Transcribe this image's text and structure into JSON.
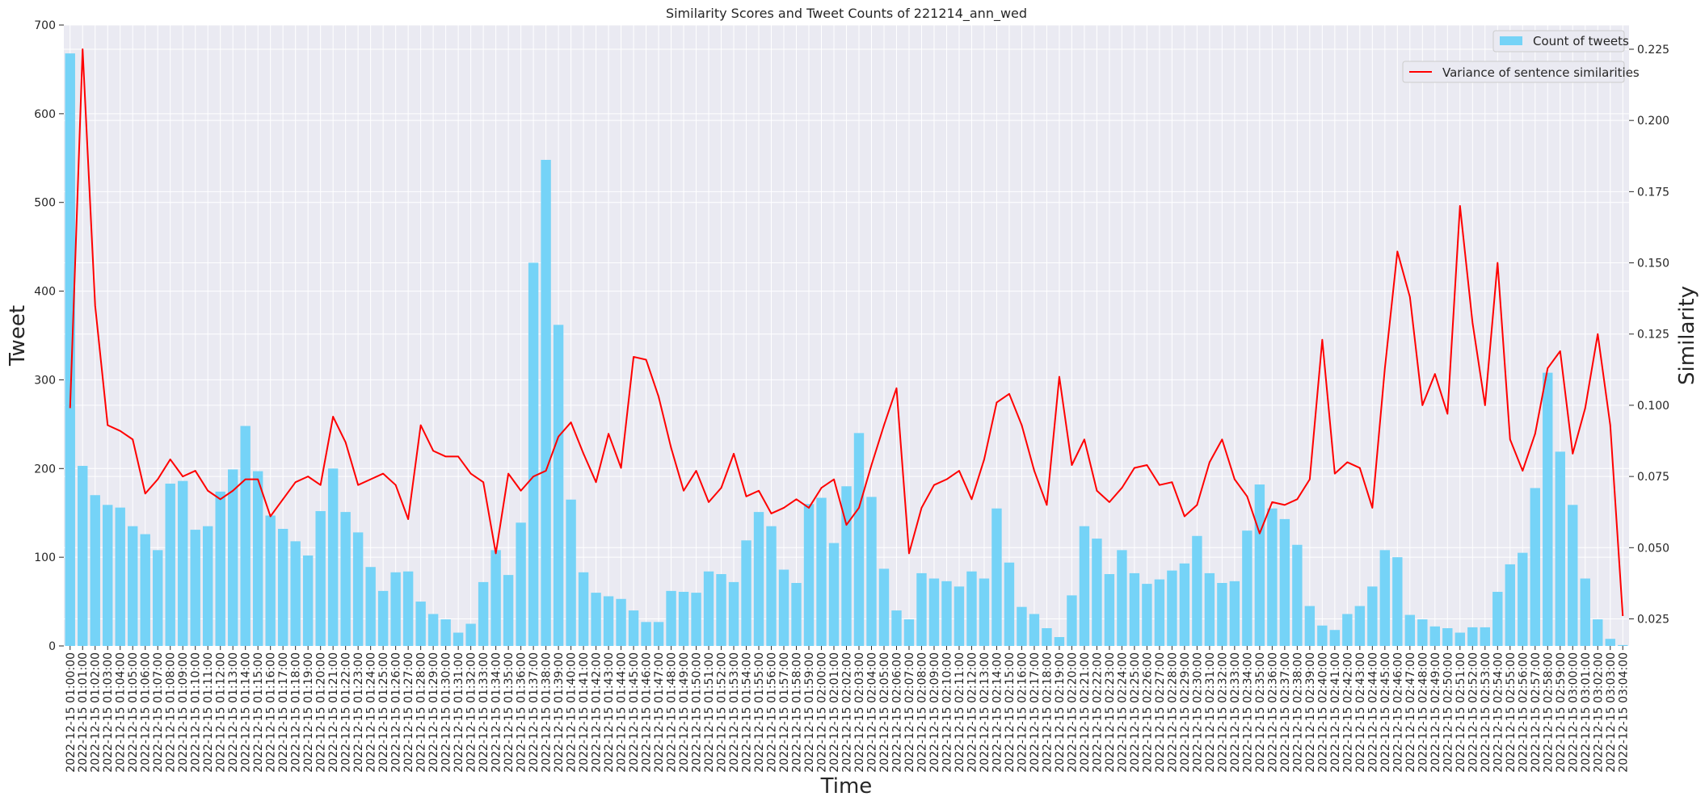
{
  "chart_data": {
    "type": "bar",
    "title": "Similarity Scores and Tweet Counts of 221214_ann_wed",
    "xlabel": "Time",
    "ylabel": "Tweet",
    "y2label": "Similarity",
    "ylim": [
      0,
      700
    ],
    "yticks": [
      0,
      100,
      200,
      300,
      400,
      500,
      600,
      700
    ],
    "y2lim": [
      0.0155,
      0.2335
    ],
    "y2ticks": [
      0.025,
      0.05,
      0.075,
      0.1,
      0.125,
      0.15,
      0.175,
      0.2,
      0.225
    ],
    "y2tick_labels": [
      "0.025",
      "0.050",
      "0.075",
      "0.100",
      "0.125",
      "0.150",
      "0.175",
      "0.200",
      "0.225"
    ],
    "grid": true,
    "background": "#eaeaf2",
    "bar_color": "#75d3f7",
    "line_color": "#ff0000",
    "legend": [
      {
        "label": "Count of tweets",
        "placement": "top-right"
      },
      {
        "label": "Variance of sentence similarities",
        "placement": "top-right"
      }
    ],
    "series": [
      {
        "name": "Count of tweets",
        "type": "bar",
        "axis": "left",
        "values": [
          668,
          203,
          170,
          159,
          156,
          135,
          126,
          108,
          183,
          186,
          131,
          135,
          174,
          199,
          248,
          197,
          147,
          132,
          118,
          102,
          152,
          200,
          151,
          128,
          89,
          62,
          83,
          84,
          50,
          36,
          30,
          15,
          25,
          72,
          108,
          80,
          139,
          432,
          548,
          362,
          165,
          83,
          60,
          56,
          53,
          40,
          27,
          27,
          62,
          61,
          60,
          84,
          81,
          72,
          119,
          151,
          135,
          86,
          71,
          160,
          167,
          116,
          180,
          240,
          168,
          87,
          40,
          30,
          82,
          76,
          73,
          67,
          84,
          76,
          155,
          94,
          44,
          36,
          20,
          10,
          57,
          135,
          121,
          81,
          108,
          82,
          70,
          75,
          85,
          93,
          124,
          82,
          71,
          73,
          130,
          182,
          155,
          143,
          114,
          45,
          23,
          18,
          36,
          45,
          67,
          108,
          100,
          35,
          30,
          22,
          20,
          15,
          21,
          21,
          61,
          92,
          105,
          178,
          308,
          219,
          159,
          76,
          30,
          8,
          1
        ]
      },
      {
        "name": "Variance of sentence similarities",
        "type": "line",
        "axis": "right",
        "values": [
          0.099,
          0.225,
          0.135,
          0.093,
          0.091,
          0.088,
          0.069,
          0.074,
          0.081,
          0.075,
          0.077,
          0.07,
          0.067,
          0.07,
          0.074,
          0.074,
          0.061,
          0.067,
          0.073,
          0.075,
          0.072,
          0.096,
          0.087,
          0.072,
          0.074,
          0.076,
          0.072,
          0.06,
          0.093,
          0.084,
          0.082,
          0.082,
          0.076,
          0.073,
          0.048,
          0.076,
          0.07,
          0.075,
          0.077,
          0.089,
          0.094,
          0.083,
          0.073,
          0.09,
          0.078,
          0.117,
          0.116,
          0.103,
          0.085,
          0.07,
          0.077,
          0.066,
          0.071,
          0.083,
          0.068,
          0.07,
          0.062,
          0.064,
          0.067,
          0.064,
          0.071,
          0.074,
          0.058,
          0.064,
          0.079,
          0.093,
          0.106,
          0.048,
          0.064,
          0.072,
          0.074,
          0.077,
          0.067,
          0.081,
          0.101,
          0.104,
          0.093,
          0.077,
          0.065,
          0.11,
          0.079,
          0.088,
          0.07,
          0.066,
          0.071,
          0.078,
          0.079,
          0.072,
          0.073,
          0.061,
          0.065,
          0.08,
          0.088,
          0.074,
          0.068,
          0.055,
          0.066,
          0.065,
          0.067,
          0.074,
          0.123,
          0.076,
          0.08,
          0.078,
          0.064,
          0.113,
          0.154,
          0.138,
          0.1,
          0.111,
          0.097,
          0.17,
          0.129,
          0.1,
          0.15,
          0.088,
          0.077,
          0.09,
          0.113,
          0.119,
          0.083,
          0.099,
          0.125,
          0.093,
          0.026
        ]
      }
    ],
    "start_label": "2022-12-15 01:00:00",
    "end_label": "2022-12-15 03:04:00"
  }
}
